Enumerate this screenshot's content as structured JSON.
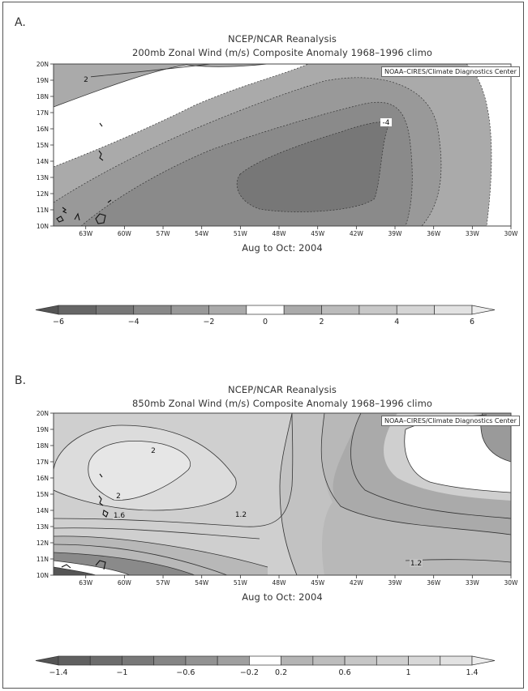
{
  "panels": [
    {
      "letter": "A.",
      "title1": "NCEP/NCAR Reanalysis",
      "title2": "200mb Zonal Wind (m/s) Composite Anomaly 1968–1996 climo",
      "credit": "NOAA–CIRES/Climate Diagnostics Center",
      "subtitle": "Aug to Oct: 2004",
      "contour_labels": [
        "2",
        "-4"
      ]
    },
    {
      "letter": "B.",
      "title1": "NCEP/NCAR Reanalysis",
      "title2": "850mb Zonal Wind (m/s) Composite Anomaly 1968–1996 climo",
      "credit": "NOAA–CIRES/Climate Diagnostics Center",
      "subtitle": "Aug to Oct: 2004",
      "contour_labels": [
        "2",
        "2",
        "1.6",
        "1.2",
        "1.2"
      ]
    }
  ],
  "chart_data": [
    {
      "type": "heatmap",
      "title": "NCEP/NCAR Reanalysis — 200mb Zonal Wind (m/s) Composite Anomaly 1968–1996 climo",
      "subtitle": "Aug to Oct: 2004",
      "x_ticks": [
        "63W",
        "60W",
        "57W",
        "54W",
        "51W",
        "48W",
        "45W",
        "42W",
        "39W",
        "36W",
        "33W",
        "30W"
      ],
      "y_ticks": [
        "10N",
        "11N",
        "12N",
        "13N",
        "14N",
        "15N",
        "16N",
        "17N",
        "18N",
        "19N",
        "20N"
      ],
      "xlim": [
        -65.5,
        -30
      ],
      "ylim": [
        10,
        20
      ],
      "colorbar": {
        "ticks": [
          "-6",
          "-4",
          "-2",
          "0",
          "2",
          "4",
          "6"
        ],
        "levels": [
          -6,
          -5,
          -4,
          -3,
          -2,
          -1,
          1,
          2,
          3,
          4,
          5,
          6
        ],
        "colors": [
          "#555555",
          "#666666",
          "#777777",
          "#888888",
          "#999999",
          "#aaaaaa",
          "#ffffff",
          "#aaaaaa",
          "#bbbbbb",
          "#c8c8c8",
          "#d5d5d5",
          "#e2e2e2",
          "#eeeeee"
        ]
      },
      "contour_labels": [
        2,
        -4
      ],
      "min_region_value": -4
    },
    {
      "type": "heatmap",
      "title": "NCEP/NCAR Reanalysis — 850mb Zonal Wind (m/s) Composite Anomaly 1968–1996 climo",
      "subtitle": "Aug to Oct: 2004",
      "x_ticks": [
        "63W",
        "60W",
        "57W",
        "54W",
        "51W",
        "48W",
        "45W",
        "42W",
        "39W",
        "36W",
        "33W",
        "30W"
      ],
      "y_ticks": [
        "10N",
        "11N",
        "12N",
        "13N",
        "14N",
        "15N",
        "16N",
        "17N",
        "18N",
        "19N",
        "20N"
      ],
      "xlim": [
        -65.5,
        -30
      ],
      "ylim": [
        10,
        20
      ],
      "colorbar": {
        "ticks": [
          "-1.4",
          "-1",
          "-0.6",
          "-0.2",
          "0.2",
          "0.6",
          "1",
          "1.4"
        ],
        "levels": [
          -1.4,
          -1.2,
          -1.0,
          -0.8,
          -0.6,
          -0.4,
          -0.2,
          0.2,
          0.4,
          0.6,
          0.8,
          1.0,
          1.2,
          1.4
        ],
        "colors": [
          "#555555",
          "#606060",
          "#6c6c6c",
          "#787878",
          "#858585",
          "#929292",
          "#9f9f9f",
          "#ffffff",
          "#b4b4b4",
          "#bdbdbd",
          "#c6c6c6",
          "#cfcfcf",
          "#d8d8d8",
          "#e2e2e2",
          "#ececec"
        ]
      },
      "contour_labels": [
        2,
        2,
        1.6,
        1.2,
        1.2
      ],
      "max_region_value": 2
    }
  ],
  "colors": {
    "frame": "#555555",
    "contour": "#333333",
    "coast": "#111111"
  }
}
